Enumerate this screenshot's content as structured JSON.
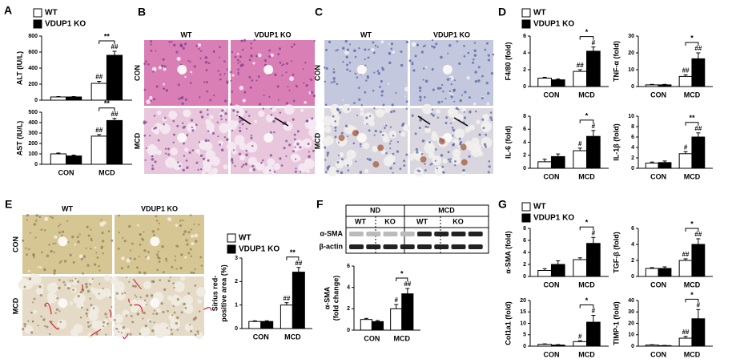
{
  "chart_data": [
    {
      "type": "bar",
      "panel": "A",
      "ylabel": [
        "ALT (IU/L)"
      ],
      "categories": [
        null,
        null
      ],
      "series": [
        {
          "name": "WT",
          "color": "#ffffff",
          "values": [
            40,
            210
          ],
          "errors": [
            5,
            25
          ]
        },
        {
          "name": "VDUP1 KO",
          "color": "#000000",
          "values": [
            40,
            560
          ],
          "errors": [
            5,
            50
          ]
        }
      ],
      "ylim": [
        0,
        800
      ],
      "yticks": [
        0,
        200,
        400,
        600,
        800
      ],
      "legend": true,
      "annotations": {
        "bracket": "**",
        "wt_mark": "##",
        "ko_mark": "##"
      }
    },
    {
      "type": "bar",
      "ylabel": [
        "AST (IU/L)"
      ],
      "categories": [
        "CON",
        "MCD"
      ],
      "series": [
        {
          "color": "#ffffff",
          "values": [
            100,
            270
          ],
          "errors": [
            8,
            15
          ]
        },
        {
          "color": "#000000",
          "values": [
            80,
            420
          ],
          "errors": [
            8,
            20
          ]
        }
      ],
      "ylim": [
        0,
        500
      ],
      "yticks": [
        0,
        100,
        200,
        300,
        400,
        500
      ],
      "annotations": {
        "bracket": "**",
        "wt_mark": "##",
        "ko_mark": "##"
      }
    },
    {
      "type": "bar",
      "panel": "D",
      "ylabel": [
        "F4/80 (fold)"
      ],
      "categories": [
        "CON",
        "MCD"
      ],
      "series": [
        {
          "name": "WT",
          "color": "#ffffff",
          "values": [
            1.0,
            1.8
          ],
          "errors": [
            0.1,
            0.2
          ]
        },
        {
          "name": "VDUP1 KO",
          "color": "#000000",
          "values": [
            0.8,
            4.2
          ],
          "errors": [
            0.1,
            0.5
          ]
        }
      ],
      "ylim": [
        0,
        6
      ],
      "yticks": [
        0,
        2,
        4,
        6
      ],
      "legend": true,
      "annotations": {
        "bracket": "*",
        "wt_mark": "##",
        "ko_mark": "#"
      }
    },
    {
      "type": "bar",
      "ylabel": [
        "TNF-α (fold)"
      ],
      "categories": [
        "CON",
        "MCD"
      ],
      "series": [
        {
          "color": "#ffffff",
          "values": [
            1,
            6
          ],
          "errors": [
            0.3,
            1
          ]
        },
        {
          "color": "#000000",
          "values": [
            1,
            16.5
          ],
          "errors": [
            0.3,
            3.5
          ]
        }
      ],
      "ylim": [
        0,
        30
      ],
      "yticks": [
        0,
        10,
        20,
        30
      ],
      "annotations": {
        "bracket": "*",
        "wt_mark": "##",
        "ko_mark": "##"
      }
    },
    {
      "type": "bar",
      "ylabel": [
        "IL-6 (fold)"
      ],
      "categories": [
        "CON",
        "MCD"
      ],
      "series": [
        {
          "color": "#ffffff",
          "values": [
            1.0,
            2.7
          ],
          "errors": [
            0.4,
            0.4
          ]
        },
        {
          "color": "#000000",
          "values": [
            1.8,
            4.9
          ],
          "errors": [
            0.4,
            0.9
          ]
        }
      ],
      "ylim": [
        0,
        8
      ],
      "yticks": [
        0,
        2,
        4,
        6,
        8
      ],
      "annotations": {
        "bracket": "*",
        "wt_mark": "#",
        "ko_mark": "#"
      }
    },
    {
      "type": "bar",
      "ylabel": [
        "IL-1β (fold)"
      ],
      "categories": [
        "CON",
        "MCD"
      ],
      "series": [
        {
          "color": "#ffffff",
          "values": [
            1,
            2.8
          ],
          "errors": [
            0.2,
            0.4
          ]
        },
        {
          "color": "#000000",
          "values": [
            1.1,
            6
          ],
          "errors": [
            0.3,
            0.8
          ]
        }
      ],
      "ylim": [
        0,
        10
      ],
      "yticks": [
        0,
        2,
        4,
        6,
        8,
        10
      ],
      "annotations": {
        "bracket": "**",
        "wt_mark": "#",
        "ko_mark": "##"
      }
    },
    {
      "type": "bar",
      "ylabel": [
        "Sirius red-",
        "positive area (%)"
      ],
      "categories": [
        "CON",
        "MCD"
      ],
      "series": [
        {
          "name": "WT",
          "color": "#ffffff",
          "values": [
            0.3,
            1.0
          ],
          "errors": [
            0.03,
            0.1
          ]
        },
        {
          "name": "VDUP1 KO",
          "color": "#000000",
          "values": [
            0.3,
            2.4
          ],
          "errors": [
            0.03,
            0.2
          ]
        }
      ],
      "ylim": [
        0,
        3
      ],
      "yticks": [
        0,
        1,
        2,
        3
      ],
      "legend": true,
      "annotations": {
        "bracket": "**",
        "wt_mark": "##",
        "ko_mark": "##"
      }
    },
    {
      "type": "bar",
      "ylabel": [
        "α-SMA",
        "(fold change)"
      ],
      "categories": [
        "CON",
        "MCD"
      ],
      "series": [
        {
          "color": "#ffffff",
          "values": [
            1.0,
            2.0
          ],
          "errors": [
            0.1,
            0.4
          ]
        },
        {
          "color": "#000000",
          "values": [
            0.8,
            3.4
          ],
          "errors": [
            0.1,
            0.5
          ]
        }
      ],
      "ylim": [
        0,
        6
      ],
      "yticks": [
        0,
        2,
        4,
        6
      ],
      "annotations": {
        "bracket": "*",
        "wt_mark": "#",
        "ko_mark": "##"
      }
    },
    {
      "type": "bar",
      "panel": "G",
      "ylabel": [
        "α-SMA (fold)"
      ],
      "categories": [
        "CON",
        "MCD"
      ],
      "series": [
        {
          "name": "WT",
          "color": "#ffffff",
          "values": [
            1,
            2.8
          ],
          "errors": [
            0.3,
            0.3
          ]
        },
        {
          "name": "VDUP1 KO",
          "color": "#000000",
          "values": [
            2,
            5.5
          ],
          "errors": [
            0.6,
            1
          ]
        }
      ],
      "ylim": [
        0,
        8
      ],
      "yticks": [
        0,
        2,
        4,
        6,
        8
      ],
      "legend": true,
      "annotations": {
        "bracket": "*",
        "ko_mark": "#"
      }
    },
    {
      "type": "bar",
      "ylabel": [
        "TGF-β (fold)"
      ],
      "categories": [
        "CON",
        "MCD"
      ],
      "series": [
        {
          "color": "#ffffff",
          "values": [
            1,
            2
          ],
          "errors": [
            0.1,
            0.2
          ]
        },
        {
          "color": "#000000",
          "values": [
            1,
            4
          ],
          "errors": [
            0.2,
            0.7
          ]
        }
      ],
      "ylim": [
        0,
        6
      ],
      "yticks": [
        0,
        2,
        4,
        6
      ],
      "annotations": {
        "bracket": "*",
        "wt_mark": "##",
        "ko_mark": "##"
      }
    },
    {
      "type": "bar",
      "ylabel": [
        "Col1a1 (fold)"
      ],
      "categories": [
        "CON",
        "MCD"
      ],
      "series": [
        {
          "color": "#ffffff",
          "values": [
            0.8,
            2
          ],
          "errors": [
            0.2,
            0.4
          ]
        },
        {
          "color": "#000000",
          "values": [
            0.5,
            10.5
          ],
          "errors": [
            0.2,
            3
          ]
        }
      ],
      "ylim": [
        0,
        20
      ],
      "yticks": [
        0,
        5,
        10,
        15,
        20
      ],
      "annotations": {
        "bracket": "*",
        "wt_mark": "#",
        "ko_mark": "#"
      }
    },
    {
      "type": "bar",
      "ylabel": [
        "TIMP-1 (fold)"
      ],
      "categories": [
        "CON",
        "MCD"
      ],
      "series": [
        {
          "color": "#ffffff",
          "values": [
            1,
            7
          ],
          "errors": [
            0.3,
            1.5
          ]
        },
        {
          "color": "#000000",
          "values": [
            0.5,
            24
          ],
          "errors": [
            0.2,
            8
          ]
        }
      ],
      "ylim": [
        0,
        40
      ],
      "yticks": [
        0,
        10,
        20,
        30,
        40
      ],
      "annotations": {
        "bracket": "*",
        "wt_mark": "##",
        "ko_mark": "#"
      }
    }
  ],
  "histology": [
    {
      "panel": "B",
      "columns": [
        "WT",
        "VDUP1 KO"
      ],
      "rows": [
        "CON",
        "MCD"
      ]
    },
    {
      "panel": "C",
      "columns": [
        "WT",
        "VDUP1 KO"
      ],
      "rows": [
        "CON",
        "MCD"
      ]
    },
    {
      "panel": "E",
      "columns": [
        "WT",
        "VDUP1 KO"
      ],
      "rows": [
        "CON",
        "MCD"
      ]
    }
  ],
  "blot": {
    "panel": "F",
    "groups": [
      "ND",
      "MCD"
    ],
    "lanes": [
      "WT",
      "KO",
      "WT",
      "KO"
    ],
    "rows": [
      "α-SMA",
      "β-actin"
    ]
  }
}
